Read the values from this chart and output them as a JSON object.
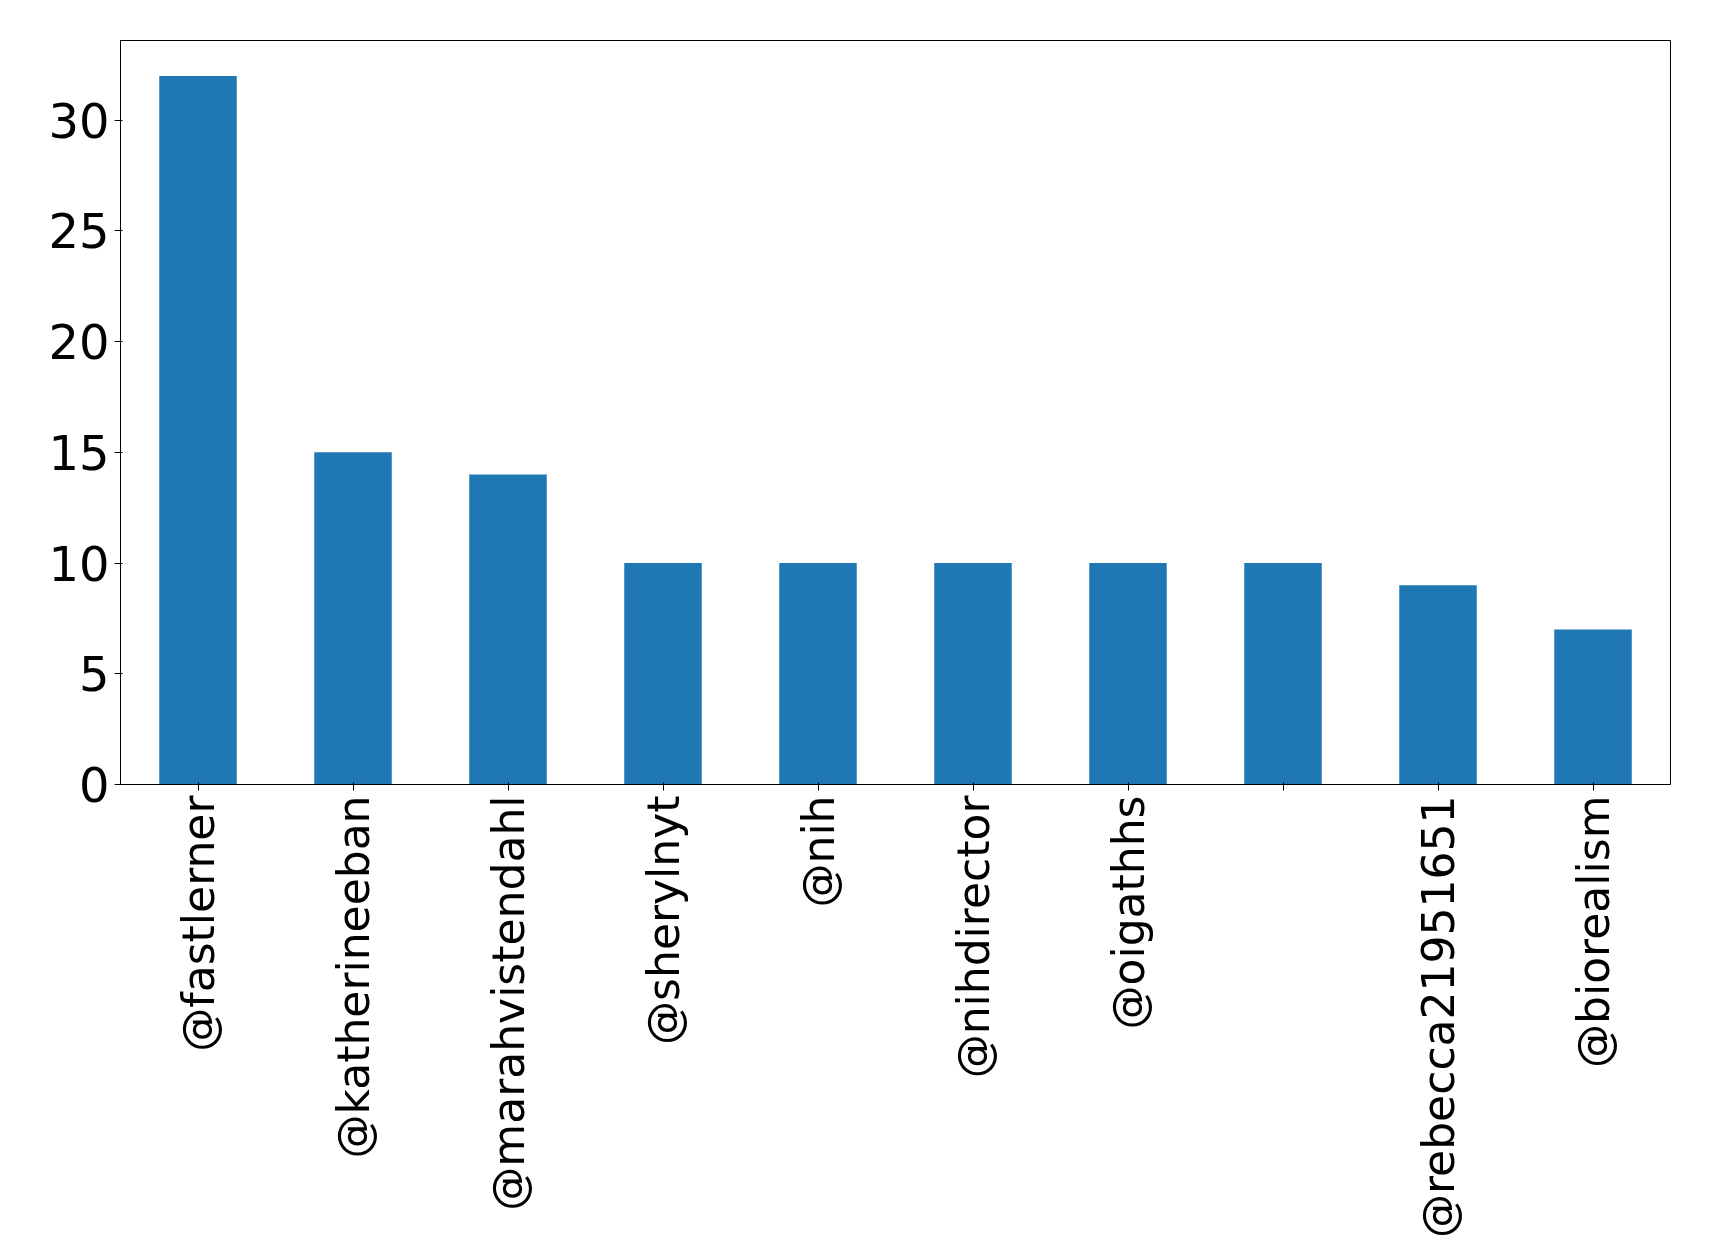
{
  "chart_data": {
    "type": "bar",
    "categories": [
      "@fastlerner",
      "@katherineeban",
      "@marahvistendahl",
      "@sherylnyt",
      "@nih",
      "@nihdirector",
      "@oigathhs",
      null,
      "@rebecca21951651",
      "@biorealism"
    ],
    "values": [
      32,
      15,
      14,
      10,
      10,
      10,
      10,
      10,
      9,
      7
    ],
    "color": "#1f77b4",
    "ylim": [
      0,
      33.6
    ],
    "yticks": [
      0,
      5,
      10,
      15,
      20,
      25,
      30
    ],
    "grid": false
  }
}
